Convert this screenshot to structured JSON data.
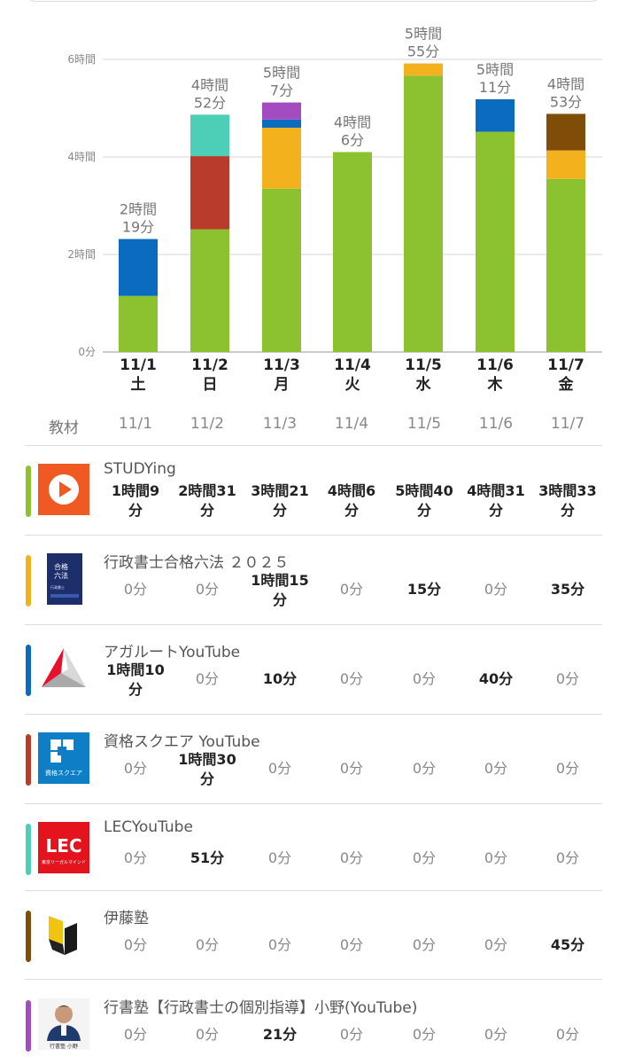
{
  "chart_data": {
    "type": "bar",
    "stacked": true,
    "categories": [
      "11/1",
      "11/2",
      "11/3",
      "11/4",
      "11/5",
      "11/6",
      "11/7"
    ],
    "weekdays": [
      "土",
      "日",
      "月",
      "火",
      "水",
      "木",
      "金"
    ],
    "y_unit": "minutes",
    "ylim": [
      0,
      360
    ],
    "y_ticks": [
      {
        "value": 0,
        "label": "0分"
      },
      {
        "value": 120,
        "label": "2時間"
      },
      {
        "value": 240,
        "label": "4時間"
      },
      {
        "value": 360,
        "label": "6時間"
      }
    ],
    "grid": true,
    "totals": [
      {
        "l1": "2時間",
        "l2": "19分"
      },
      {
        "l1": "4時間",
        "l2": "52分"
      },
      {
        "l1": "5時間",
        "l2": "7分"
      },
      {
        "l1": "4時間",
        "l2": "6分"
      },
      {
        "l1": "5時間",
        "l2": "55分"
      },
      {
        "l1": "5時間",
        "l2": "11分"
      },
      {
        "l1": "4時間",
        "l2": "53分"
      }
    ],
    "series": [
      {
        "color": "#8cc22f",
        "values": [
          69,
          151,
          201,
          246,
          340,
          271,
          213
        ]
      },
      {
        "color": "#f3b11e",
        "values": [
          0,
          0,
          75,
          0,
          15,
          0,
          35
        ]
      },
      {
        "color": "#0a6bbf",
        "values": [
          70,
          0,
          10,
          0,
          0,
          40,
          0
        ]
      },
      {
        "color": "#b83b2b",
        "values": [
          0,
          90,
          0,
          0,
          0,
          0,
          0
        ]
      },
      {
        "color": "#4ccfb6",
        "values": [
          0,
          51,
          0,
          0,
          0,
          0,
          0
        ]
      },
      {
        "color": "#7f4d07",
        "values": [
          0,
          0,
          0,
          0,
          0,
          0,
          45
        ]
      },
      {
        "color": "#a24cc0",
        "values": [
          0,
          0,
          21,
          0,
          0,
          0,
          0
        ]
      }
    ]
  },
  "table": {
    "header_label": "教材",
    "dates": [
      "11/1",
      "11/2",
      "11/3",
      "11/4",
      "11/5",
      "11/6",
      "11/7"
    ],
    "materials": [
      {
        "name": "STUDYing",
        "color": "#8cc22f",
        "icon": "studying-play-icon",
        "values": [
          [
            "1時間9",
            "分"
          ],
          [
            "2時間31",
            "分"
          ],
          [
            "3時間21",
            "分"
          ],
          [
            "4時間6",
            "分"
          ],
          [
            "5時間40",
            "分"
          ],
          [
            "4時間31",
            "分"
          ],
          [
            "3時間33",
            "分"
          ]
        ]
      },
      {
        "name": "行政書士合格六法 ２０２５",
        "color": "#f3b11e",
        "icon": "book-cover-icon",
        "thumb_text": [
          "合格",
          "六法",
          "行政書士"
        ],
        "values": [
          [
            "0分"
          ],
          [
            "0分"
          ],
          [
            "1時間15",
            "分"
          ],
          [
            "0分"
          ],
          [
            "15分"
          ],
          [
            "0分"
          ],
          [
            "35分"
          ]
        ]
      },
      {
        "name": "アガルートYouTube",
        "color": "#0a6bbf",
        "icon": "agaroot-logo-icon",
        "values": [
          [
            "1時間10",
            "分"
          ],
          [
            "0分"
          ],
          [
            "10分"
          ],
          [
            "0分"
          ],
          [
            "0分"
          ],
          [
            "40分"
          ],
          [
            "0分"
          ]
        ]
      },
      {
        "name": "資格スクエア YouTube",
        "color": "#b83b2b",
        "icon": "shikaku-square-logo-icon",
        "thumb_text": [
          "資格スクエア"
        ],
        "values": [
          [
            "0分"
          ],
          [
            "1時間30",
            "分"
          ],
          [
            "0分"
          ],
          [
            "0分"
          ],
          [
            "0分"
          ],
          [
            "0分"
          ],
          [
            "0分"
          ]
        ]
      },
      {
        "name": "LECYouTube",
        "color": "#4ccfb6",
        "icon": "lec-logo-icon",
        "thumb_text": [
          "LEC",
          "東京リーガルマインド"
        ],
        "values": [
          [
            "0分"
          ],
          [
            "51分"
          ],
          [
            "0分"
          ],
          [
            "0分"
          ],
          [
            "0分"
          ],
          [
            "0分"
          ],
          [
            "0分"
          ]
        ]
      },
      {
        "name": "伊藤塾",
        "color": "#7f4d07",
        "icon": "itojuku-logo-icon",
        "values": [
          [
            "0分"
          ],
          [
            "0分"
          ],
          [
            "0分"
          ],
          [
            "0分"
          ],
          [
            "0分"
          ],
          [
            "0分"
          ],
          [
            "45分"
          ]
        ]
      },
      {
        "name": "行書塾【行政書士の個別指導】小野(YouTube)",
        "color": "#a24cc0",
        "icon": "teacher-avatar-icon",
        "thumb_text": [
          "行書塾 小野"
        ],
        "values": [
          [
            "0分"
          ],
          [
            "0分"
          ],
          [
            "21分"
          ],
          [
            "0分"
          ],
          [
            "0分"
          ],
          [
            "0分"
          ],
          [
            "0分"
          ]
        ]
      }
    ]
  }
}
